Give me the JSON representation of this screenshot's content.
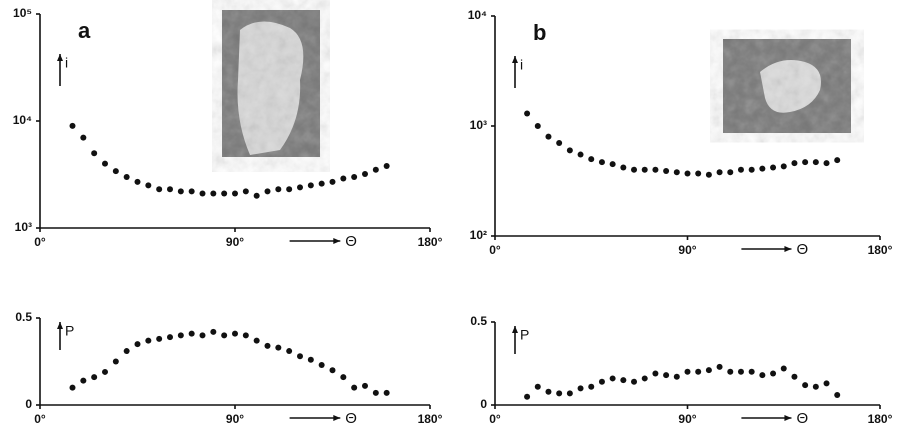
{
  "chart_data": [
    {
      "type": "scatter",
      "panel_label": "a",
      "ylabel": "i",
      "xlabel": "Θ",
      "color": "#111",
      "log_y": true,
      "x": [
        15,
        20,
        25,
        30,
        35,
        40,
        45,
        50,
        55,
        60,
        65,
        70,
        75,
        80,
        85,
        90,
        95,
        100,
        105,
        110,
        115,
        120,
        125,
        130,
        135,
        140,
        145,
        150,
        155,
        160
      ],
      "values": [
        9000,
        7000,
        5000,
        4000,
        3400,
        3000,
        2700,
        2500,
        2300,
        2300,
        2200,
        2200,
        2100,
        2100,
        2100,
        2100,
        2200,
        2000,
        2200,
        2300,
        2300,
        2400,
        2500,
        2600,
        2700,
        2900,
        3000,
        3200,
        3500,
        3800
      ],
      "xlim": [
        0,
        180
      ],
      "ylim": [
        1000,
        100000
      ],
      "xticks": [
        {
          "value": 0,
          "label": "0°"
        },
        {
          "value": 90,
          "label": "90°"
        },
        {
          "value": 180,
          "label": "180°"
        }
      ],
      "yticks": [
        {
          "value": 1000,
          "label": "10³"
        },
        {
          "value": 10000,
          "label": "10⁴"
        },
        {
          "value": 100000,
          "label": "10⁵"
        }
      ]
    },
    {
      "type": "scatter",
      "panel_label": "b",
      "ylabel": "i",
      "xlabel": "Θ",
      "color": "#111",
      "log_y": true,
      "x": [
        15,
        20,
        25,
        30,
        35,
        40,
        45,
        50,
        55,
        60,
        65,
        70,
        75,
        80,
        85,
        90,
        95,
        100,
        105,
        110,
        115,
        120,
        125,
        130,
        135,
        140,
        145,
        150,
        155,
        160
      ],
      "values": [
        1300,
        1000,
        800,
        700,
        600,
        550,
        500,
        470,
        450,
        420,
        400,
        400,
        400,
        390,
        380,
        370,
        370,
        360,
        380,
        380,
        400,
        400,
        410,
        420,
        430,
        460,
        470,
        470,
        460,
        490
      ],
      "xlim": [
        0,
        180
      ],
      "ylim": [
        100,
        10000
      ],
      "xticks": [
        {
          "value": 0,
          "label": "0°"
        },
        {
          "value": 90,
          "label": "90°"
        },
        {
          "value": 180,
          "label": "180°"
        }
      ],
      "yticks": [
        {
          "value": 100,
          "label": "10²"
        },
        {
          "value": 1000,
          "label": "10³"
        },
        {
          "value": 10000,
          "label": "10⁴"
        }
      ]
    },
    {
      "type": "scatter",
      "ylabel": "P",
      "xlabel": "Θ",
      "color": "#111",
      "log_y": false,
      "x": [
        15,
        20,
        25,
        30,
        35,
        40,
        45,
        50,
        55,
        60,
        65,
        70,
        75,
        80,
        85,
        90,
        95,
        100,
        105,
        110,
        115,
        120,
        125,
        130,
        135,
        140,
        145,
        150,
        155,
        160
      ],
      "values": [
        0.1,
        0.14,
        0.16,
        0.19,
        0.25,
        0.31,
        0.35,
        0.37,
        0.38,
        0.39,
        0.4,
        0.41,
        0.4,
        0.42,
        0.4,
        0.41,
        0.4,
        0.37,
        0.34,
        0.33,
        0.31,
        0.28,
        0.26,
        0.23,
        0.2,
        0.16,
        0.1,
        0.11,
        0.07,
        0.07
      ],
      "xlim": [
        0,
        180
      ],
      "ylim": [
        0,
        0.5
      ],
      "xticks": [
        {
          "value": 0,
          "label": "0°"
        },
        {
          "value": 90,
          "label": "90°"
        },
        {
          "value": 180,
          "label": "180°"
        }
      ],
      "yticks": [
        0,
        0.5
      ]
    },
    {
      "type": "scatter",
      "ylabel": "P",
      "xlabel": "Θ",
      "color": "#111",
      "log_y": false,
      "x": [
        15,
        20,
        25,
        30,
        35,
        40,
        45,
        50,
        55,
        60,
        65,
        70,
        75,
        80,
        85,
        90,
        95,
        100,
        105,
        110,
        115,
        120,
        125,
        130,
        135,
        140,
        145,
        150,
        155,
        160
      ],
      "values": [
        0.05,
        0.11,
        0.08,
        0.07,
        0.07,
        0.1,
        0.11,
        0.14,
        0.16,
        0.15,
        0.14,
        0.16,
        0.19,
        0.18,
        0.17,
        0.2,
        0.2,
        0.21,
        0.23,
        0.2,
        0.2,
        0.2,
        0.18,
        0.19,
        0.22,
        0.17,
        0.12,
        0.11,
        0.13,
        0.06
      ],
      "xlim": [
        0,
        180
      ],
      "ylim": [
        0,
        0.5
      ],
      "xticks": [
        {
          "value": 0,
          "label": "0°"
        },
        {
          "value": 90,
          "label": "90°"
        },
        {
          "value": 180,
          "label": "180°"
        }
      ],
      "yticks": [
        0,
        0.5
      ]
    }
  ]
}
